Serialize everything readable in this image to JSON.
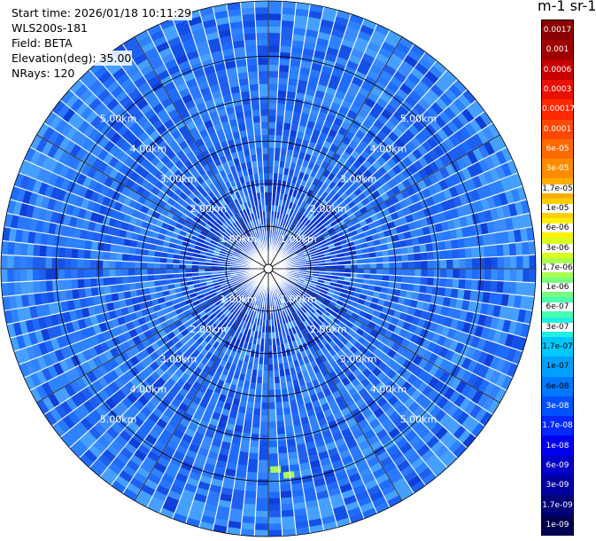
{
  "info": {
    "start_time": "Start time: 2026/01/18 10:11:29",
    "instrument": "WLS200s-181",
    "field": "Field: BETA",
    "elevation": "Elevation(deg): 35.00",
    "nrays": "NRays: 120"
  },
  "colorbar": {
    "unit_label": "m-1 sr-1",
    "ticks": [
      "0.0017",
      "0.001",
      "0.0006",
      "0.0003",
      "0.00017",
      "0.0001",
      "6e-05",
      "3e-05",
      "1.7e-05",
      "1e-05",
      "6e-06",
      "3e-06",
      "1.7e-06",
      "1e-06",
      "6e-07",
      "3e-07",
      "1.7e-07",
      "1e-07",
      "6e-08",
      "3e-08",
      "1.7e-08",
      "1e-08",
      "6e-09",
      "3e-09",
      "1.7e-09",
      "1e-09"
    ],
    "colors": [
      "#8b0000",
      "#a00000",
      "#c80000",
      "#e81000",
      "#ff2800",
      "#ff4800",
      "#ff6a00",
      "#ff8c00",
      "#ffad00",
      "#ffcf00",
      "#fff000",
      "#d8ff20",
      "#a8ff50",
      "#78ff80",
      "#48ffb0",
      "#20f0e0",
      "#00c8ff",
      "#00a0ff",
      "#0078ff",
      "#0050ff",
      "#0028ff",
      "#0000f0",
      "#0000c8",
      "#0000a0",
      "#000078",
      "#000050"
    ]
  },
  "chart_data": {
    "type": "heatmap",
    "projection": "polar (PPI scan)",
    "field": "BETA",
    "rays": 120,
    "max_range_km": 6.3,
    "range_ring_km": [
      1,
      2,
      3,
      4,
      5
    ],
    "range_labels": [
      "1.00km",
      "2.00km",
      "3.00km",
      "4.00km",
      "5.00km"
    ],
    "dominant_value": "1e-07 to 6e-08",
    "cmap_range": [
      "1e-09",
      "0.0017"
    ],
    "colorbar_scale": "log"
  }
}
